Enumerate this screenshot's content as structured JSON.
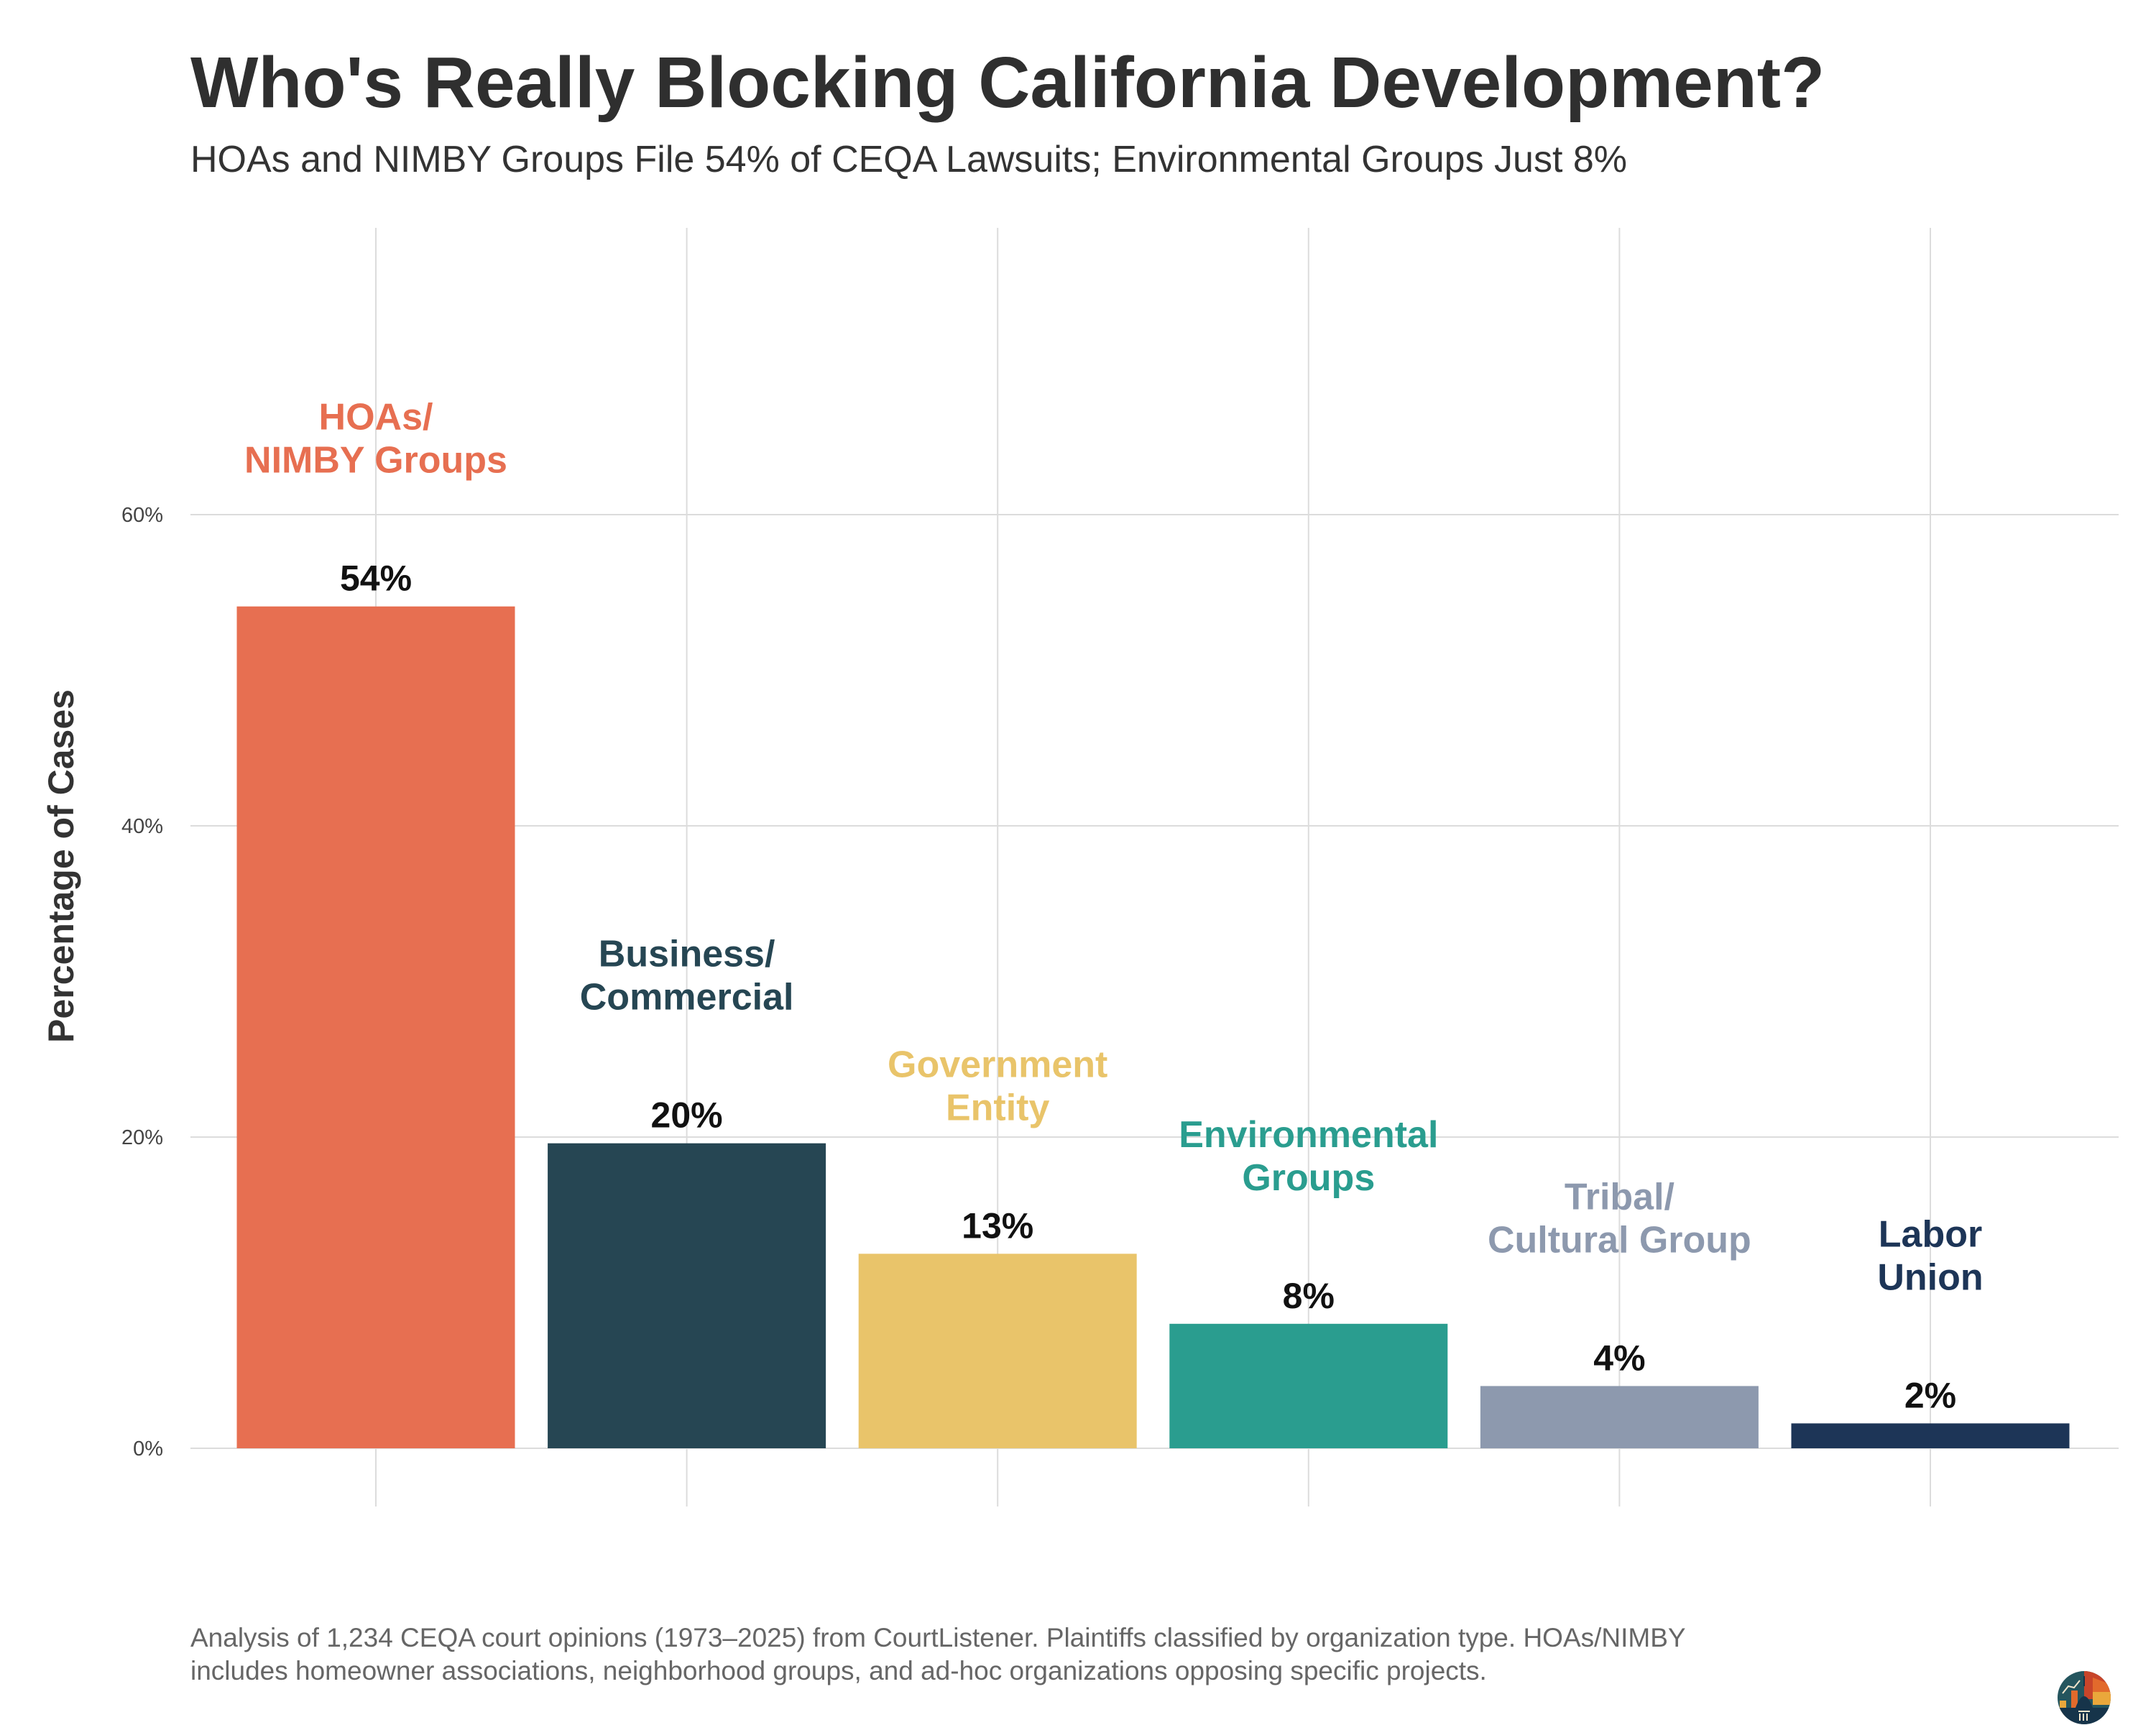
{
  "title": "Who's Really Blocking California Development?",
  "subtitle": "HOAs and NIMBY Groups File 54% of CEQA Lawsuits; Environmental Groups Just 8%",
  "footer": {
    "line1": "Analysis of 1,234 CEQA court opinions (1973–2025) from CourtListener. Plaintiffs classified by organization type. HOAs/NIMBY",
    "line2": "includes homeowner associations, neighborhood groups, and ad-hoc organizations opposing specific projects."
  },
  "chart_data": {
    "type": "bar",
    "title": "Who's Really Blocking California Development?",
    "xlabel": "",
    "ylabel": "Percentage of Cases",
    "ylim": [
      0,
      70
    ],
    "yticks": [
      0,
      20,
      40,
      60
    ],
    "ytick_labels": [
      "0%",
      "20%",
      "40%",
      "60%"
    ],
    "grid": true,
    "categories": [
      "HOAs/ NIMBY Groups",
      "Business/ Commercial",
      "Government Entity",
      "Environmental Groups",
      "Tribal/ Cultural Group",
      "Labor Union"
    ],
    "category_lines": [
      [
        "HOAs/",
        "NIMBY Groups"
      ],
      [
        "Business/",
        "Commercial"
      ],
      [
        "Government",
        "Entity"
      ],
      [
        "Environmental",
        "Groups"
      ],
      [
        "Tribal/",
        "Cultural Group"
      ],
      [
        "Labor",
        "Union"
      ]
    ],
    "values": [
      54.1,
      19.6,
      12.5,
      8.0,
      4.0,
      1.6
    ],
    "value_labels": [
      "54%",
      "20%",
      "13%",
      "8%",
      "4%",
      "2%"
    ],
    "colors": [
      "#E76F51",
      "#264653",
      "#E9C46A",
      "#2A9D8F",
      "#8D99AE",
      "#1D3557"
    ]
  }
}
